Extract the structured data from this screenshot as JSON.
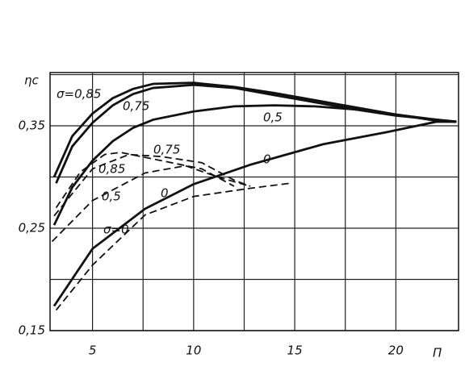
{
  "chart_data": {
    "type": "line",
    "ylabel": "ηc",
    "xlabel": "П",
    "xlim": [
      2.9,
      23.1
    ],
    "ylim": [
      0.15,
      0.402
    ],
    "xticks": [
      5,
      10,
      15,
      20
    ],
    "x_minor_grid": [
      7.5,
      12.5,
      17.5
    ],
    "yticks": [
      {
        "value": 0.15,
        "label": "0,15"
      },
      {
        "value": 0.25,
        "label": "0,25"
      },
      {
        "value": 0.35,
        "label": "0,35"
      }
    ],
    "y_minor_grid": [
      0.2,
      0.3,
      0.4
    ],
    "grid": true,
    "series": [
      {
        "style": "solid",
        "color": "#111111",
        "x": [
          3.1,
          4,
          5,
          6,
          7,
          8,
          10,
          12,
          14,
          16,
          18,
          20,
          22,
          23
        ],
        "values": [
          0.3,
          0.34,
          0.362,
          0.377,
          0.386,
          0.391,
          0.392,
          0.388,
          0.382,
          0.375,
          0.368,
          0.361,
          0.355,
          0.354
        ]
      },
      {
        "style": "solid",
        "color": "#111111",
        "x": [
          3.2,
          4,
          5,
          6,
          7,
          8,
          10,
          12,
          14,
          16,
          18,
          20,
          22,
          23
        ],
        "values": [
          0.294,
          0.33,
          0.353,
          0.37,
          0.381,
          0.387,
          0.39,
          0.387,
          0.38,
          0.373,
          0.366,
          0.36,
          0.356,
          0.354
        ]
      },
      {
        "style": "solid",
        "color": "#111111",
        "x": [
          3.1,
          4,
          5,
          6,
          7,
          8,
          10,
          12,
          14,
          16,
          18,
          20,
          22,
          23
        ],
        "values": [
          0.253,
          0.29,
          0.316,
          0.335,
          0.348,
          0.356,
          0.364,
          0.369,
          0.37,
          0.369,
          0.366,
          0.361,
          0.356,
          0.354
        ]
      },
      {
        "style": "solid",
        "color": "#111111",
        "x": [
          3.1,
          5,
          7.6,
          10,
          12.8,
          16.4,
          19.6,
          22,
          23
        ],
        "values": [
          0.174,
          0.23,
          0.269,
          0.293,
          0.312,
          0.332,
          0.344,
          0.354,
          0.354
        ]
      },
      {
        "style": "dashed",
        "color": "#111111",
        "x": [
          3.2,
          4.4,
          5.6,
          6.4,
          8.4,
          10.4,
          12
        ],
        "values": [
          0.27,
          0.305,
          0.322,
          0.324,
          0.316,
          0.308,
          0.291
        ]
      },
      {
        "style": "dashed",
        "color": "#111111",
        "x": [
          3.1,
          5,
          6.8,
          8.4,
          10.4,
          12,
          12.8
        ],
        "values": [
          0.262,
          0.308,
          0.322,
          0.32,
          0.314,
          0.297,
          0.291
        ]
      },
      {
        "style": "dashed",
        "color": "#111111",
        "x": [
          3,
          5,
          7.6,
          9.6,
          11.2,
          12.8
        ],
        "values": [
          0.237,
          0.277,
          0.304,
          0.311,
          0.3,
          0.291
        ]
      },
      {
        "style": "dashed",
        "color": "#111111",
        "x": [
          3.2,
          5,
          7.6,
          10,
          12.8,
          14.8
        ],
        "values": [
          0.17,
          0.214,
          0.263,
          0.281,
          0.289,
          0.294
        ]
      }
    ],
    "annotations": [
      "σ=0,85",
      "0,75",
      "0,5",
      "0",
      "0,75",
      "0,85",
      "0,5",
      "0",
      "σ=0"
    ]
  }
}
